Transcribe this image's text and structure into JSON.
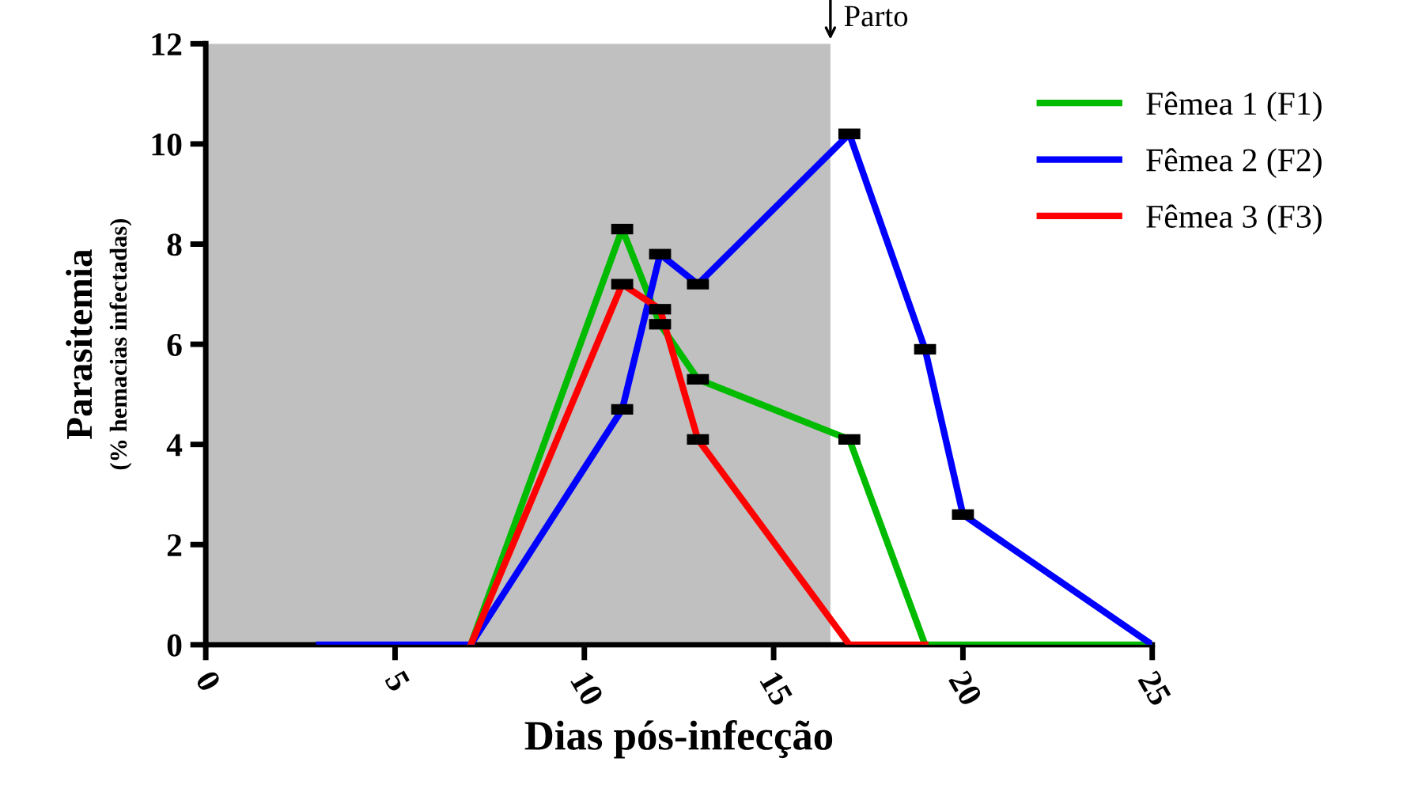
{
  "chart_data": {
    "type": "line",
    "xlabel": "Dias pós-infecção",
    "ylabel": "Parasitemia",
    "subtitle": "(% hemacias infectadas)",
    "xlim": [
      0,
      25
    ],
    "xticks": [
      0,
      5,
      10,
      15,
      20,
      25
    ],
    "ylim": [
      0,
      12
    ],
    "yticks": [
      0,
      2,
      4,
      6,
      8,
      10,
      12
    ],
    "grid": false,
    "legend": "top right",
    "marker": "none",
    "line_style": "solid",
    "series": [
      {
        "name": "Fêmea 1 (F1)",
        "color": "#00bb00",
        "x": [
          7,
          11,
          12,
          13,
          17,
          19,
          25
        ],
        "values": [
          0,
          8.3,
          6.4,
          5.3,
          4.1,
          0,
          0
        ],
        "errors": [
          null,
          0.05,
          0.05,
          0.05,
          0.05,
          null,
          null
        ]
      },
      {
        "name": "Fêmea 2 (F2)",
        "color": "#0000ff",
        "x": [
          3,
          7,
          11,
          12,
          13,
          17,
          19,
          20,
          25
        ],
        "values": [
          0,
          0,
          4.7,
          7.8,
          7.2,
          10.2,
          5.9,
          2.6,
          0
        ],
        "errors": [
          null,
          null,
          0.05,
          0.05,
          0.05,
          0.05,
          0.05,
          0.05,
          null
        ]
      },
      {
        "name": "Fêmea 3 (F3)",
        "color": "#ff0000",
        "x": [
          7,
          11,
          12,
          13,
          17,
          19
        ],
        "values": [
          0,
          7.2,
          6.7,
          4.1,
          0,
          0
        ],
        "errors": [
          null,
          0.05,
          0.05,
          0.05,
          null,
          null
        ]
      }
    ],
    "bands": [
      {
        "axis": "x",
        "from": 0,
        "to": 16.5,
        "color": "#c0c0c0"
      }
    ],
    "annotations": [
      {
        "text": "Parto",
        "x": 16.5,
        "y": 12
      }
    ]
  }
}
